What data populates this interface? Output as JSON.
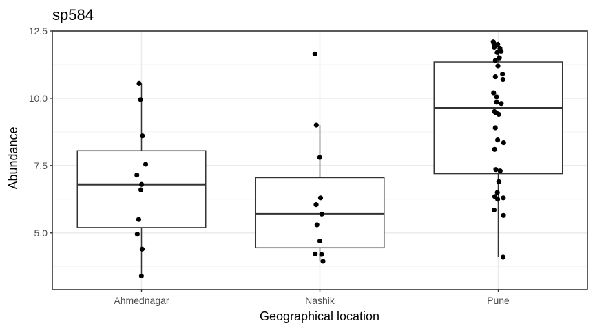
{
  "chart_data": {
    "type": "boxplot",
    "title": "sp584",
    "xlabel": "Geographical location",
    "ylabel": "Abundance",
    "ylim": [
      2.9,
      12.5
    ],
    "yticks": [
      5.0,
      7.5,
      10.0,
      12.5
    ],
    "ytick_labels": [
      "5.0",
      "7.5",
      "10.0",
      "12.5"
    ],
    "grid": true,
    "legend": "none",
    "categories": [
      "Ahmednagar",
      "Nashik",
      "Pune"
    ],
    "boxes": [
      {
        "category": "Ahmednagar",
        "whisker_low": 3.4,
        "q1": 5.2,
        "median": 6.8,
        "q3": 8.05,
        "whisker_high": 10.55
      },
      {
        "category": "Nashik",
        "whisker_low": 3.95,
        "q1": 4.45,
        "median": 5.7,
        "q3": 7.05,
        "whisker_high": 9.0
      },
      {
        "category": "Pune",
        "whisker_low": 4.1,
        "q1": 7.2,
        "median": 9.65,
        "q3": 11.35,
        "whisker_high": 12.1
      }
    ],
    "points": [
      {
        "category": "Ahmednagar",
        "values": [
          3.4,
          4.4,
          4.95,
          5.5,
          6.6,
          6.8,
          7.15,
          7.55,
          8.6,
          9.95,
          10.55
        ]
      },
      {
        "category": "Nashik",
        "values": [
          3.95,
          4.2,
          4.22,
          4.7,
          5.3,
          5.7,
          6.05,
          6.3,
          7.8,
          9.0,
          11.65
        ]
      },
      {
        "category": "Pune",
        "values": [
          4.1,
          5.65,
          5.85,
          6.25,
          6.3,
          6.35,
          6.5,
          6.9,
          7.3,
          7.35,
          8.1,
          8.35,
          8.45,
          8.9,
          9.4,
          9.45,
          9.5,
          9.8,
          9.85,
          10.05,
          10.2,
          10.7,
          10.8,
          10.9,
          11.2,
          11.4,
          11.5,
          11.7,
          11.75,
          11.85,
          11.9,
          11.95,
          12.0,
          12.05,
          12.1
        ]
      }
    ]
  },
  "colors": {
    "panel_border": "#333333",
    "grid_major": "#ebebeb",
    "grid_minor": "#f3f3f3",
    "box_fill": "#ffffff",
    "box_stroke": "#333333",
    "point": "#000000",
    "tick_label": "#4d4d4d"
  }
}
